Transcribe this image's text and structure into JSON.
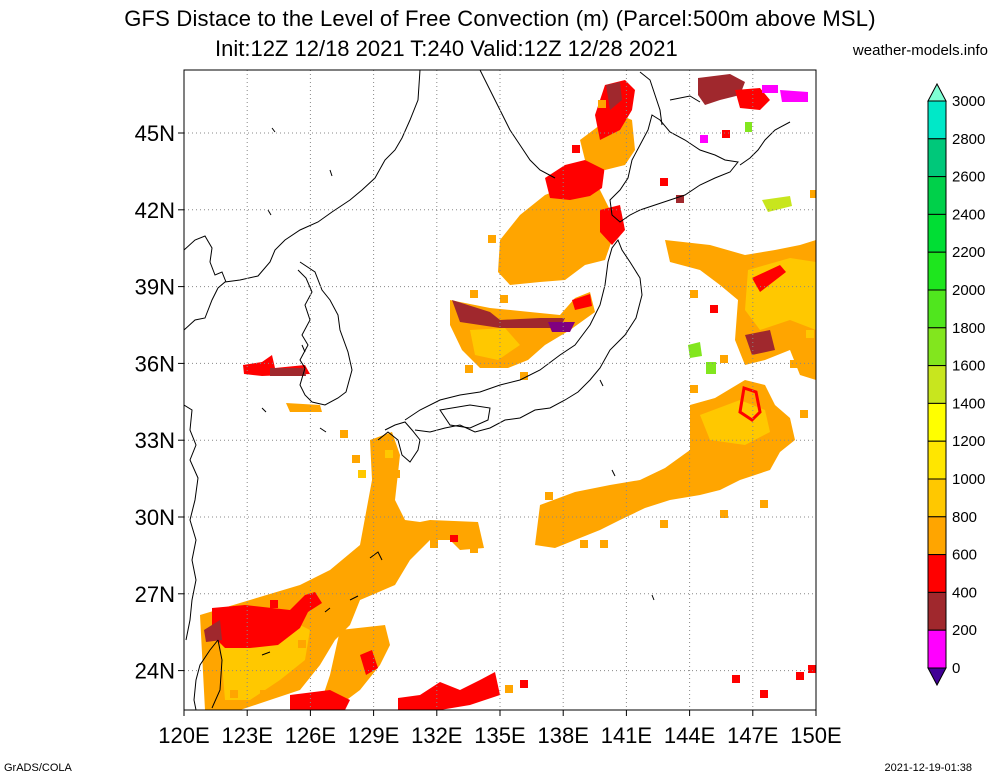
{
  "header": {
    "title_line1": "GFS Distace to the Level of Free Convection (m) (Parcel:500m above MSL)",
    "title_line2": "Init:12Z 12/18 2021 T:240 Valid:12Z 12/28 2021",
    "site": "weather-models.info"
  },
  "footer": {
    "left": "GrADS/COLA",
    "right": "2021-12-19-01:38"
  },
  "map": {
    "lon_labels": [
      "120E",
      "123E",
      "126E",
      "129E",
      "132E",
      "135E",
      "138E",
      "141E",
      "144E",
      "147E",
      "150E"
    ],
    "lat_labels": [
      "45N",
      "42N",
      "39N",
      "36N",
      "33N",
      "30N",
      "27N",
      "24N"
    ],
    "lat_values": [
      45,
      42,
      39,
      36,
      33,
      30,
      27,
      24
    ]
  },
  "colorbar": {
    "levels": [
      "3000",
      "2800",
      "2600",
      "2400",
      "2200",
      "2000",
      "1800",
      "1600",
      "1400",
      "1200",
      "1000",
      "800",
      "600",
      "400",
      "200",
      "0"
    ],
    "colors": [
      "#00e8c8",
      "#00c87a",
      "#00d04a",
      "#00de34",
      "#1ee61e",
      "#50e61e",
      "#82e61e",
      "#c8e61e",
      "#ffff00",
      "#ffe600",
      "#ffc800",
      "#ffa500",
      "#ff0000",
      "#a0282d",
      "#ff00ff",
      "#410096"
    ],
    "top_arrow_color": "#7fffd4",
    "bottom_arrow_color": "#410096"
  },
  "colors": {
    "orange": "#ffa500",
    "light_orange": "#ffc800",
    "yellow": "#ffe600",
    "red": "#ff0000",
    "brown": "#a0282d",
    "magenta": "#ff00ff",
    "purple": "#410096",
    "green": "#82e61e",
    "lime": "#c8e61e"
  }
}
